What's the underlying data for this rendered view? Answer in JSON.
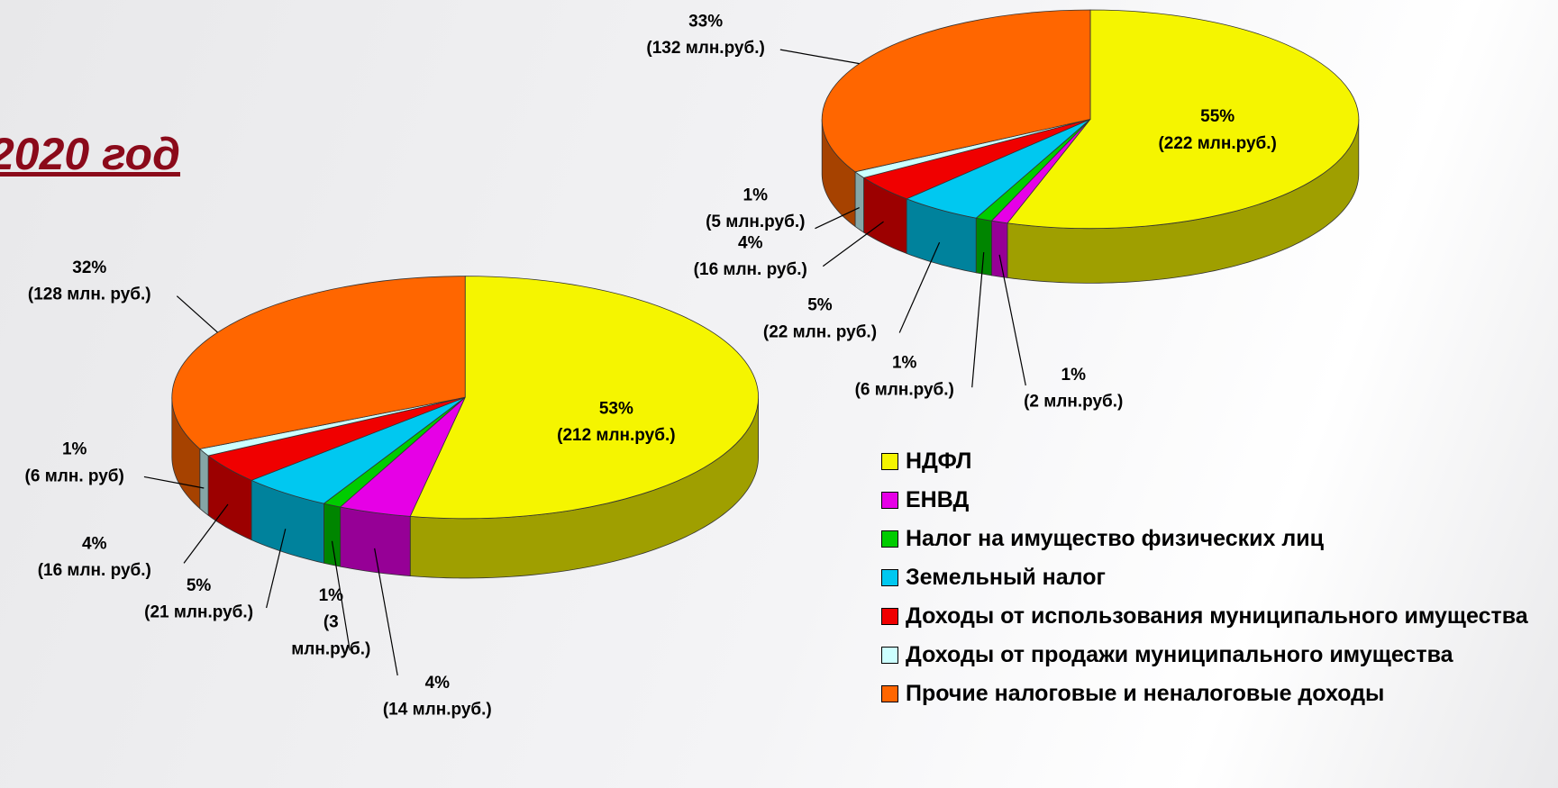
{
  "chart_data": [
    {
      "type": "pie3d",
      "title": "2020 год",
      "categories": [
        "НДФЛ",
        "ЕНВД",
        "Налог на имущество физических лиц",
        "Земельный налог",
        "Доходы от использования муниципального имущества",
        "Доходы от продажи муниципального имущества",
        "Прочие налоговые и неналоговые доходы"
      ],
      "colors": [
        "#f5f500",
        "#e600e6",
        "#00cc00",
        "#00c8f0",
        "#f00000",
        "#ccffff",
        "#ff6600"
      ],
      "values": [
        53,
        4,
        1,
        5,
        4,
        1,
        32
      ],
      "value_labels": [
        "53%",
        "4%",
        "1%",
        "5%",
        "4%",
        "1%",
        "32%"
      ],
      "amount_labels": [
        [
          "(212 млн.руб.)"
        ],
        [
          "(14 млн.руб.)"
        ],
        [
          "(3",
          "млн.руб.)"
        ],
        [
          "(21 млн.руб.)"
        ],
        [
          "(16 млн. руб.)"
        ],
        [
          "(6 млн. руб)"
        ],
        [
          "(128 млн. руб.)"
        ]
      ]
    },
    {
      "type": "pie3d",
      "categories": [
        "НДФЛ",
        "ЕНВД",
        "Налог на имущество физических лиц",
        "Земельный налог",
        "Доходы от использования муниципального имущества",
        "Доходы от продажи муниципального имущества",
        "Прочие налоговые и неналоговые доходы"
      ],
      "colors": [
        "#f5f500",
        "#e600e6",
        "#00cc00",
        "#00c8f0",
        "#f00000",
        "#ccffff",
        "#ff6600"
      ],
      "values": [
        55,
        1,
        1,
        5,
        4,
        1,
        33
      ],
      "value_labels": [
        "55%",
        "1%",
        "1%",
        "5%",
        "4%",
        "1%",
        "33%"
      ],
      "amount_labels": [
        [
          "(222 млн.руб.)"
        ],
        [
          "(2 млн.руб.)"
        ],
        [
          "(6 млн.руб.)"
        ],
        [
          "(22 млн. руб.)"
        ],
        [
          "(16 млн. руб.)"
        ],
        [
          "(5 млн.руб.)"
        ],
        [
          "(132 млн.руб.)"
        ]
      ]
    }
  ]
}
